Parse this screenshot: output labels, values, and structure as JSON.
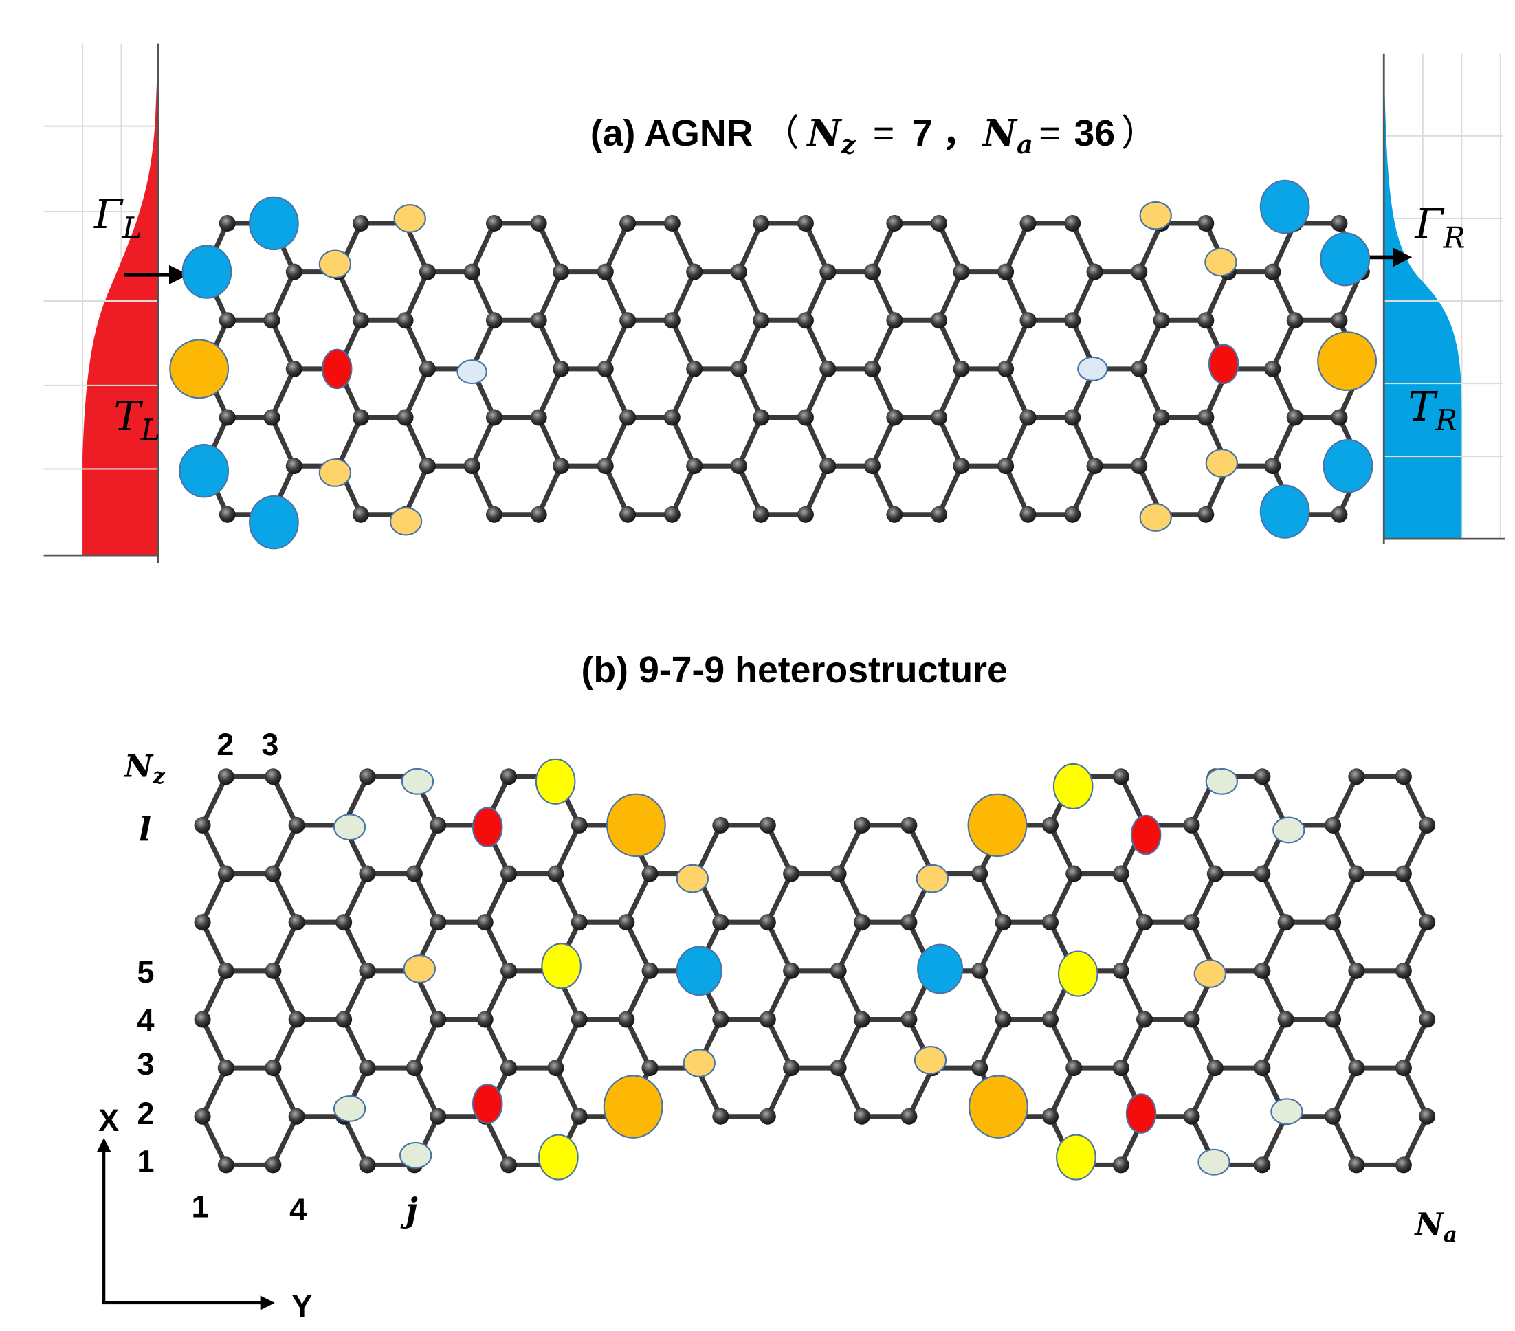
{
  "panel_a": {
    "title": {
      "label": "(a) AGNR",
      "open": "（",
      "nz_symbol": "N",
      "nz_sub": "z",
      "equals": "=",
      "nz_value": 7,
      "separator": "，",
      "na_symbol": "N",
      "na_sub": "a",
      "na_value": 36,
      "close": "）"
    },
    "left_lead": {
      "gamma": {
        "symbol": "Γ",
        "sub": "L"
      },
      "transmission": {
        "symbol": "T",
        "sub": "L"
      }
    },
    "right_lead": {
      "gamma": {
        "symbol": "Γ",
        "sub": "R"
      },
      "transmission": {
        "symbol": "T",
        "sub": "R"
      }
    }
  },
  "panel_b": {
    "title": "(b) 9-7-9  heterostructure",
    "row_axis": {
      "symbol": "N",
      "sub": "z"
    },
    "row_index": "l",
    "top_labels": [
      "2",
      "3"
    ],
    "row_labels": [
      "5",
      "4",
      "3",
      "2",
      "1"
    ],
    "column_labels": [
      "1",
      "4",
      "j"
    ],
    "column_end": {
      "symbol": "N",
      "sub": "a"
    },
    "axes": {
      "x": "X",
      "y": "Y"
    }
  }
}
